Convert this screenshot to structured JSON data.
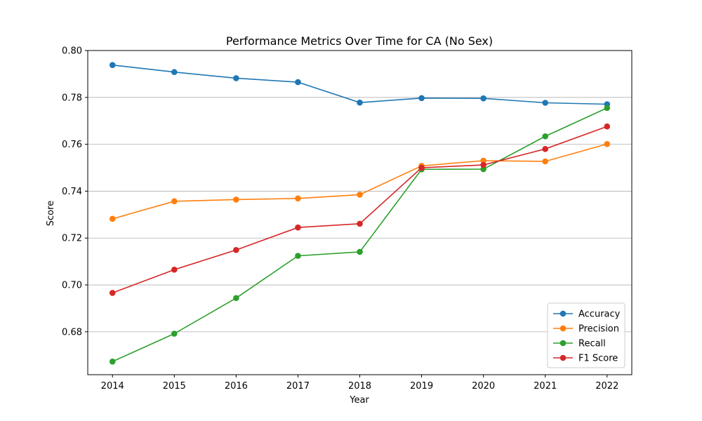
{
  "chart_data": {
    "type": "line",
    "title": "Performance Metrics Over Time for CA (No Sex)",
    "xlabel": "Year",
    "ylabel": "Score",
    "x": [
      2014,
      2015,
      2016,
      2017,
      2018,
      2019,
      2020,
      2021,
      2022
    ],
    "x_tick_labels": [
      "2014",
      "2015",
      "2016",
      "2017",
      "2018",
      "2019",
      "2020",
      "2021",
      "2022"
    ],
    "y_ticks": [
      0.68,
      0.7,
      0.72,
      0.74,
      0.76,
      0.78,
      0.8
    ],
    "y_tick_labels": [
      "0.68",
      "0.70",
      "0.72",
      "0.74",
      "0.76",
      "0.78",
      "0.80"
    ],
    "ylim": [
      0.6617,
      0.8
    ],
    "xlim": [
      2013.6,
      2022.4
    ],
    "grid": "horizontal",
    "legend_position": "lower-right",
    "series": [
      {
        "name": "Accuracy",
        "color": "#1f77b4",
        "values": [
          0.7938,
          0.7908,
          0.7882,
          0.7865,
          0.7778,
          0.7797,
          0.7796,
          0.7777,
          0.7771
        ]
      },
      {
        "name": "Precision",
        "color": "#ff7f0e",
        "values": [
          0.7282,
          0.7357,
          0.7364,
          0.7369,
          0.7385,
          0.7508,
          0.753,
          0.7527,
          0.7601
        ]
      },
      {
        "name": "Recall",
        "color": "#2ca02c",
        "values": [
          0.6673,
          0.6792,
          0.6944,
          0.7124,
          0.7141,
          0.7493,
          0.7494,
          0.7634,
          0.7755
        ]
      },
      {
        "name": "F1 Score",
        "color": "#d62728",
        "values": [
          0.6966,
          0.7065,
          0.7149,
          0.7245,
          0.7261,
          0.75,
          0.7512,
          0.758,
          0.7676
        ]
      }
    ]
  }
}
